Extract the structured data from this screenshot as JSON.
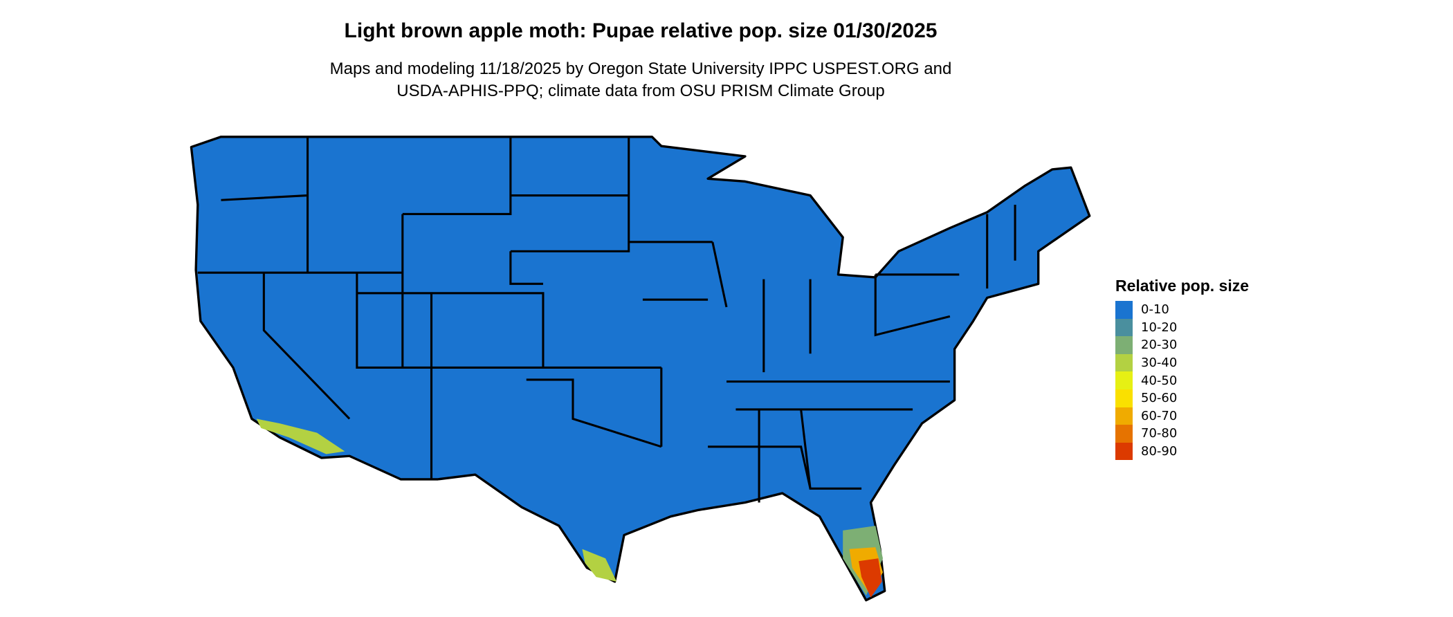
{
  "title": "Light brown apple moth: Pupae relative pop. size 01/30/2025",
  "subtitle_lines": [
    "Maps and modeling 11/18/2025 by Oregon State University IPPC USPEST.ORG and",
    "USDA-APHIS-PPQ; climate data from OSU PRISM Climate Group"
  ],
  "legend": {
    "title": "Relative pop. size",
    "items": [
      {
        "label": "0-10",
        "color": "#1a74d0"
      },
      {
        "label": "10-20",
        "color": "#4a8f9e"
      },
      {
        "label": "20-30",
        "color": "#7daf74"
      },
      {
        "label": "30-40",
        "color": "#b3d142"
      },
      {
        "label": "40-50",
        "color": "#e6f014"
      },
      {
        "label": "50-60",
        "color": "#fae000"
      },
      {
        "label": "60-70",
        "color": "#f0ab00"
      },
      {
        "label": "70-80",
        "color": "#e67300"
      },
      {
        "label": "80-90",
        "color": "#dc3a00"
      }
    ]
  },
  "map": {
    "region": "Contiguous United States",
    "base_color": "#1a74d0",
    "border_color": "#000000"
  }
}
